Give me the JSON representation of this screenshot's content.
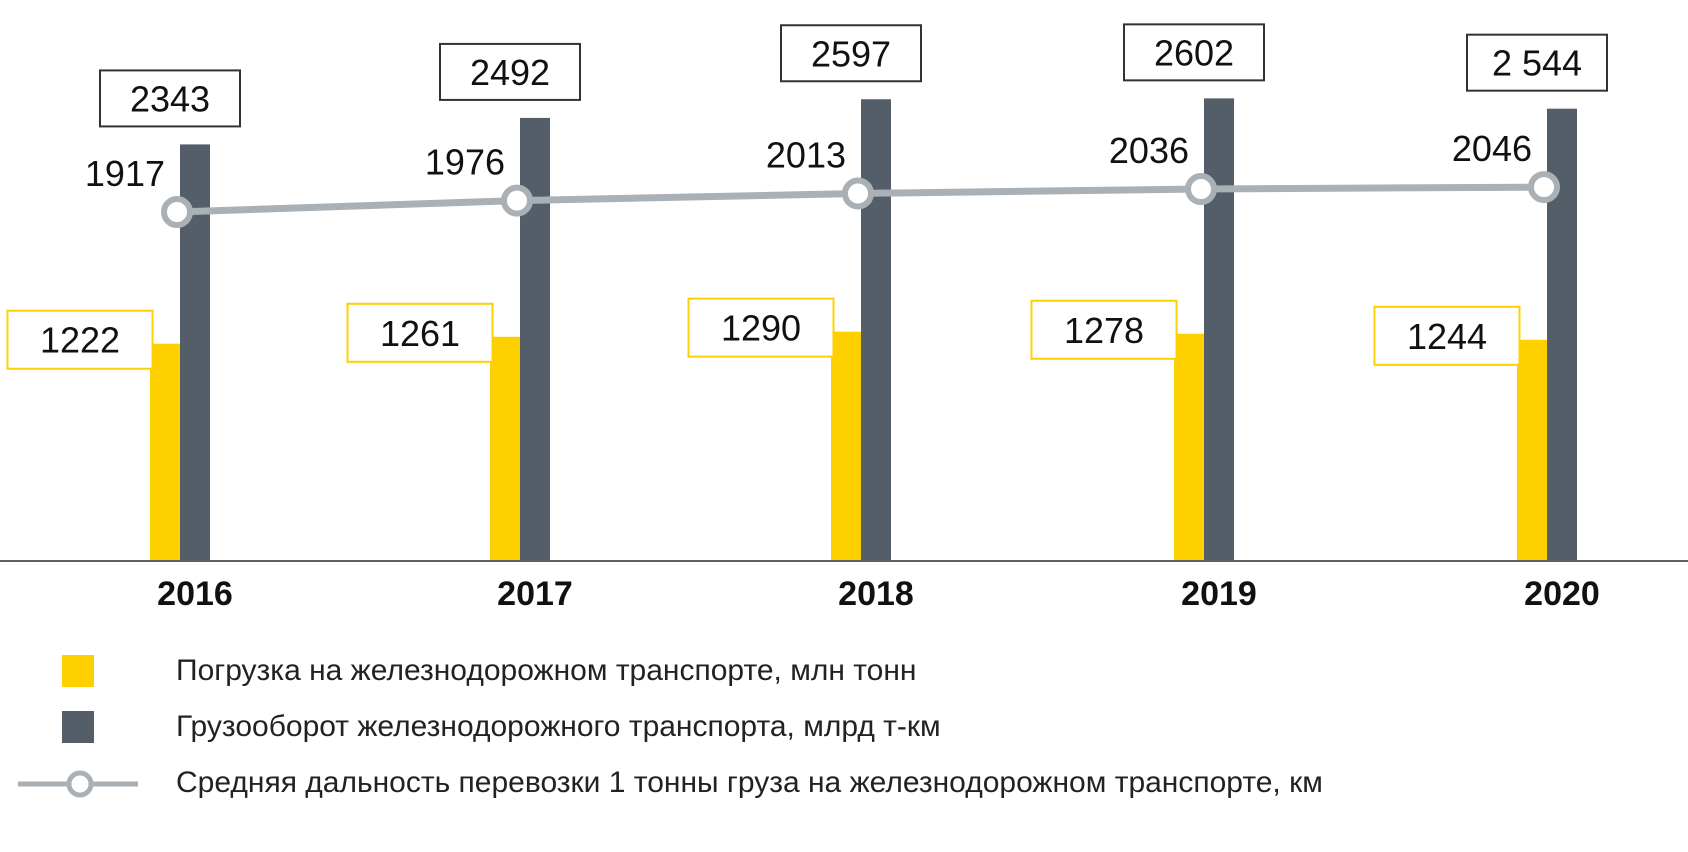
{
  "chart_data": {
    "type": "bar",
    "categories": [
      "2016",
      "2017",
      "2018",
      "2019",
      "2020"
    ],
    "series": [
      {
        "name": "Погрузка на железнодорожном транспорте, млн тонн",
        "kind": "bar",
        "color": "#FFD000",
        "values": [
          1222,
          1261,
          1290,
          1278,
          1244
        ],
        "labels": [
          "1222",
          "1261",
          "1290",
          "1278",
          "1244"
        ]
      },
      {
        "name": "Грузооборот железнодорожного транспорта, млрд т-км",
        "kind": "bar",
        "color": "#545E68",
        "values": [
          2343,
          2492,
          2597,
          2602,
          2544
        ],
        "labels": [
          "2343",
          "2492",
          "2597",
          "2602",
          "2 544"
        ]
      },
      {
        "name": "Средняя дальность перевозки 1 тонны груза на железнодорожном транспорте, км",
        "kind": "line",
        "color": "#A9B0B6",
        "values": [
          1917,
          1976,
          2013,
          2036,
          2046
        ],
        "labels": [
          "1917",
          "1976",
          "2013",
          "2036",
          "2046"
        ]
      }
    ],
    "title": "",
    "xlabel": "",
    "ylabel": "",
    "grid": false,
    "legend_position": "bottom"
  },
  "legend": {
    "items": [
      {
        "label": "Погрузка на железнодорожном транспорте, млн тонн",
        "marker": "square",
        "color": "#FFD000"
      },
      {
        "label": "Грузооборот железнодорожного транспорта, млрд т-км",
        "marker": "square",
        "color": "#545E68"
      },
      {
        "label": "Средняя дальность перевозки 1 тонны груза на железнодорожном транспорте, км",
        "marker": "line-circle",
        "color": "#A9B0B6"
      }
    ]
  }
}
